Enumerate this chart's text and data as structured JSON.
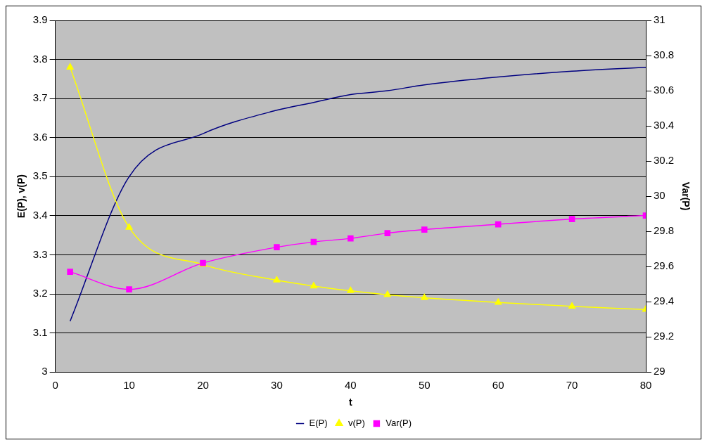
{
  "chart_data": {
    "type": "line",
    "xlabel": "t",
    "ylabel": "E(P), v(P)",
    "y2label": "Var(P)",
    "x": [
      2,
      10,
      20,
      30,
      35,
      40,
      45,
      50,
      60,
      70,
      80
    ],
    "series": [
      {
        "name": "E(P)",
        "color": "#000080",
        "marker": "none",
        "values": [
          3.13,
          3.5,
          3.61,
          3.67,
          3.69,
          3.71,
          3.72,
          3.735,
          3.755,
          3.77,
          3.78
        ]
      },
      {
        "name": "v(P)",
        "color": "#ffff00",
        "marker": "triangle",
        "values": [
          3.78,
          3.37,
          3.275,
          3.235,
          3.22,
          3.208,
          3.198,
          3.19,
          3.178,
          3.168,
          3.16
        ]
      },
      {
        "name": "Var(P)",
        "color": "#ff00ff",
        "marker": "square",
        "axis": "y2",
        "values": [
          29.57,
          29.47,
          29.62,
          29.71,
          29.74,
          29.76,
          29.79,
          29.81,
          29.84,
          29.87,
          29.89
        ]
      }
    ],
    "xlim": [
      0,
      80
    ],
    "xticks": [
      0,
      10,
      20,
      30,
      40,
      50,
      60,
      70,
      80
    ],
    "ylim": [
      3,
      3.9
    ],
    "yticks": [
      3,
      3.1,
      3.2,
      3.3,
      3.4,
      3.5,
      3.6,
      3.7,
      3.8,
      3.9
    ],
    "y2lim": [
      29,
      31
    ],
    "y2ticks": [
      29,
      29.2,
      29.4,
      29.6,
      29.8,
      30,
      30.2,
      30.4,
      30.6,
      30.8,
      31
    ],
    "grid": "y",
    "legend": "bottom"
  }
}
